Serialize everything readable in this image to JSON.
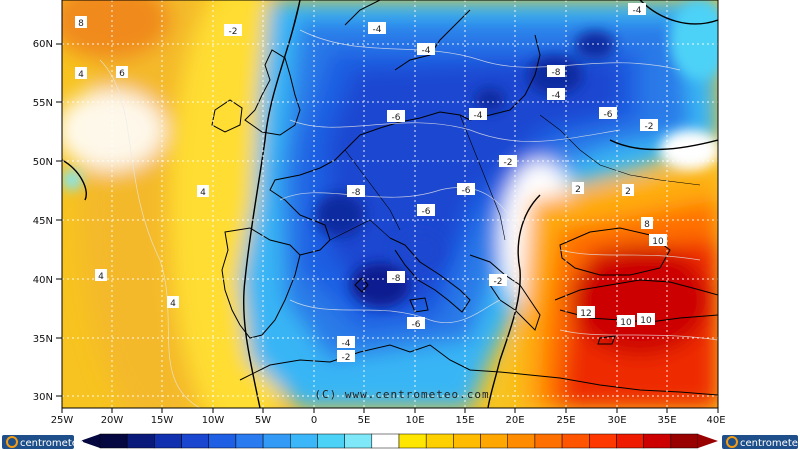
{
  "map": {
    "credit": "(C) www.centrometeo.com",
    "lat_labels": [
      "60N",
      "55N",
      "50N",
      "45N",
      "40N",
      "35N",
      "30N"
    ],
    "lon_labels": [
      "25W",
      "20W",
      "15W",
      "10W",
      "5W",
      "0",
      "5E",
      "10E",
      "15E",
      "20E",
      "25E",
      "30E",
      "35E",
      "40E"
    ],
    "contour_labels": [
      "8",
      "-2",
      "-4",
      "-4",
      "-4",
      "-4",
      "4",
      "6",
      "-8",
      "-6",
      "-4",
      "-6",
      "-2",
      "-2",
      "2",
      "-8",
      "-6",
      "-6",
      "4",
      "-6",
      "8",
      "10",
      "-8",
      "-2",
      "4",
      "-4",
      "-6",
      "2",
      "12",
      "10",
      "10",
      "-2",
      "4"
    ],
    "colors": {
      "cold_extreme": "#0b1f8a",
      "cold": "#1d4ed8",
      "cool": "#38bdf8",
      "neutral": "#ffffff",
      "warm": "#fbbf24",
      "hot": "#e11d1d"
    }
  },
  "colorbar": {
    "colors": [
      "#050840",
      "#0a1a7a",
      "#1030b0",
      "#1a46d0",
      "#1f5fe3",
      "#2a7bf0",
      "#339af6",
      "#3bb6f8",
      "#4dd2f7",
      "#7ee8f8",
      "#ffffff",
      "#ffe600",
      "#ffd000",
      "#ffbb00",
      "#ffa600",
      "#ff8c00",
      "#ff7000",
      "#ff5400",
      "#ff3800",
      "#ee1b00",
      "#cc0000",
      "#990000"
    ]
  },
  "logo": {
    "left": "centrometeo",
    "right": "centrometeo"
  }
}
